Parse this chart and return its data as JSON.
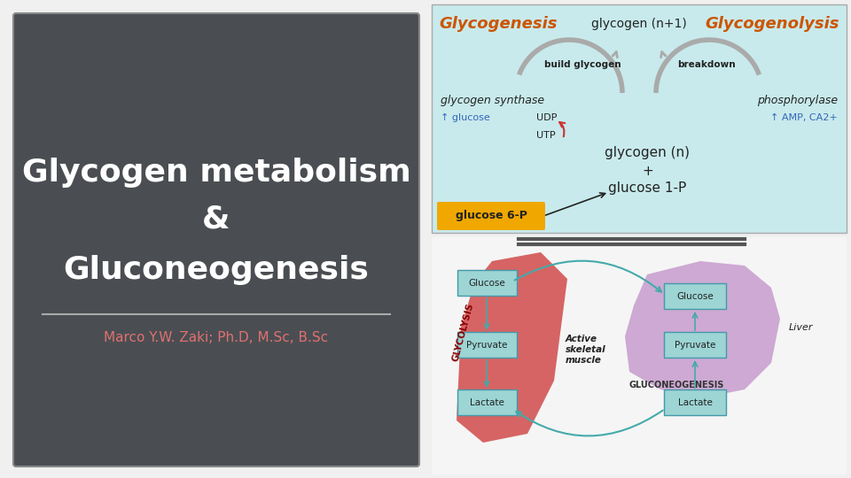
{
  "bg_color": "#f0f0f0",
  "left_panel_bg": "#4a4e52",
  "left_panel_border": "#888888",
  "title_line1": "Glycogen metabolism",
  "title_line2": "&",
  "title_line3": "Gluconeogenesis",
  "title_color": "#ffffff",
  "subtitle": "Marco Y.W. Zaki; Ph.D, M.Sc, B.Sc",
  "subtitle_color": "#e07070",
  "divider_color": "#aaaaaa",
  "right_top_bg": "#c8eaec",
  "glycogenesis_color": "#cc5500",
  "glycogenolysis_color": "#cc5500",
  "glucose6p_bg": "#f0a800",
  "separator_color": "#555555",
  "muscle_color": "#cc3333",
  "liver_color": "#c090c8",
  "box_face": "#9dd4d4",
  "box_edge": "#4499aa",
  "arrow_color": "#44aaaa",
  "text_dark": "#222222",
  "glycolysis_color": "#880000",
  "gluconeo_color": "#333333",
  "blue_label_color": "#3366bb"
}
